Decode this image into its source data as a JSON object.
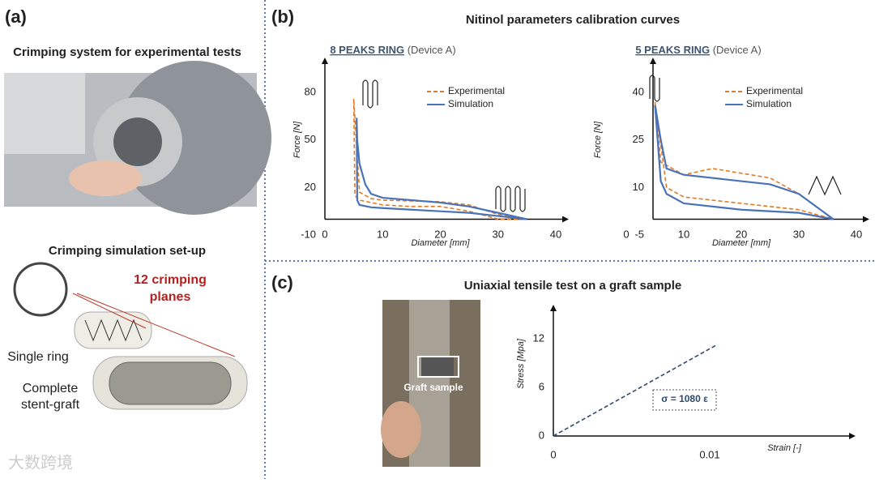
{
  "panel_a": {
    "label": "(a)",
    "title": "Crimping system for experimental tests",
    "subtitle": "Crimping simulation set-up",
    "callout": [
      "12 crimping",
      "planes"
    ],
    "single_ring": "Single ring",
    "complete": [
      "Complete",
      "stent-graft"
    ]
  },
  "panel_b": {
    "label": "(b)",
    "title": "Nitinol parameters calibration curves"
  },
  "panel_c": {
    "label": "(c)",
    "title": "Uniaxial tensile test on a graft sample",
    "photo_label": "Graft sample"
  },
  "watermark": "大数跨境",
  "chart_data": [
    {
      "type": "line",
      "title": "8 PEAKS RING",
      "subtitle": "(Device A)",
      "xlabel": "Diameter [mm]",
      "ylabel": "Force [N]",
      "xlim": [
        0,
        40
      ],
      "ylim": [
        -10,
        100
      ],
      "xticks": [
        0,
        10,
        20,
        30,
        40
      ],
      "yticks": [
        -10,
        20,
        50,
        80
      ],
      "series": [
        {
          "name": "Experimental",
          "color": "#e07b28",
          "line_style": "dashed",
          "x": [
            34,
            30,
            25,
            20,
            15,
            10,
            8,
            6,
            5,
            5.2,
            6,
            10,
            15,
            20,
            25,
            30,
            34
          ],
          "values": [
            0,
            3,
            9,
            11,
            11.5,
            12,
            13,
            17,
            76,
            15,
            12,
            9,
            8,
            8,
            5,
            0,
            0
          ]
        },
        {
          "name": "Simulation",
          "color": "#4a72b8",
          "line_style": "solid",
          "x": [
            35,
            30,
            25,
            20,
            15,
            10,
            8,
            7,
            6,
            5.6,
            5.5,
            5.6,
            6,
            8,
            10,
            15,
            20,
            25,
            30,
            35
          ],
          "values": [
            0,
            4,
            8,
            10.5,
            12,
            13.5,
            16,
            22,
            35,
            50,
            64,
            12,
            9,
            7.5,
            7,
            6,
            5,
            4,
            2,
            0
          ]
        }
      ]
    },
    {
      "type": "line",
      "title": "5 PEAKS RING",
      "subtitle": "(Device A)",
      "xlabel": "Diameter [mm]",
      "ylabel": "Force [N]",
      "xlim": [
        0,
        40
      ],
      "ylim": [
        -5,
        50
      ],
      "xticks": [
        0,
        10,
        20,
        30,
        40
      ],
      "yticks": [
        -5,
        10,
        25,
        40
      ],
      "series": [
        {
          "name": "Experimental",
          "color": "#e07b28",
          "line_style": "dashed",
          "x": [
            5,
            6,
            10,
            15,
            25,
            30,
            36,
            30,
            20,
            10,
            7,
            5
          ],
          "values": [
            37,
            18,
            14,
            16,
            13,
            8,
            0,
            3,
            5,
            7,
            10,
            37
          ]
        },
        {
          "name": "Simulation",
          "color": "#4a72b8",
          "line_style": "solid",
          "x": [
            5,
            6,
            7,
            10,
            20,
            25,
            30,
            36,
            30,
            20,
            10,
            7,
            6,
            5
          ],
          "values": [
            36,
            25,
            16,
            14,
            12,
            11,
            8,
            0,
            2,
            3,
            5,
            8,
            12,
            36
          ]
        }
      ]
    },
    {
      "type": "line",
      "xlabel": "Strain [-]",
      "ylabel": "Stress [Mpa]",
      "annotation": "σ = 1080 ε",
      "xlim": [
        0,
        0.0185
      ],
      "ylim": [
        0,
        15.8
      ],
      "xticks": [
        0,
        0.01
      ],
      "yticks": [
        0,
        6,
        12
      ],
      "series": [
        {
          "color": "#2f4a6e",
          "line_style": "dashed",
          "x": [
            0,
            0.0105
          ],
          "values": [
            0,
            11.3
          ]
        }
      ]
    }
  ]
}
